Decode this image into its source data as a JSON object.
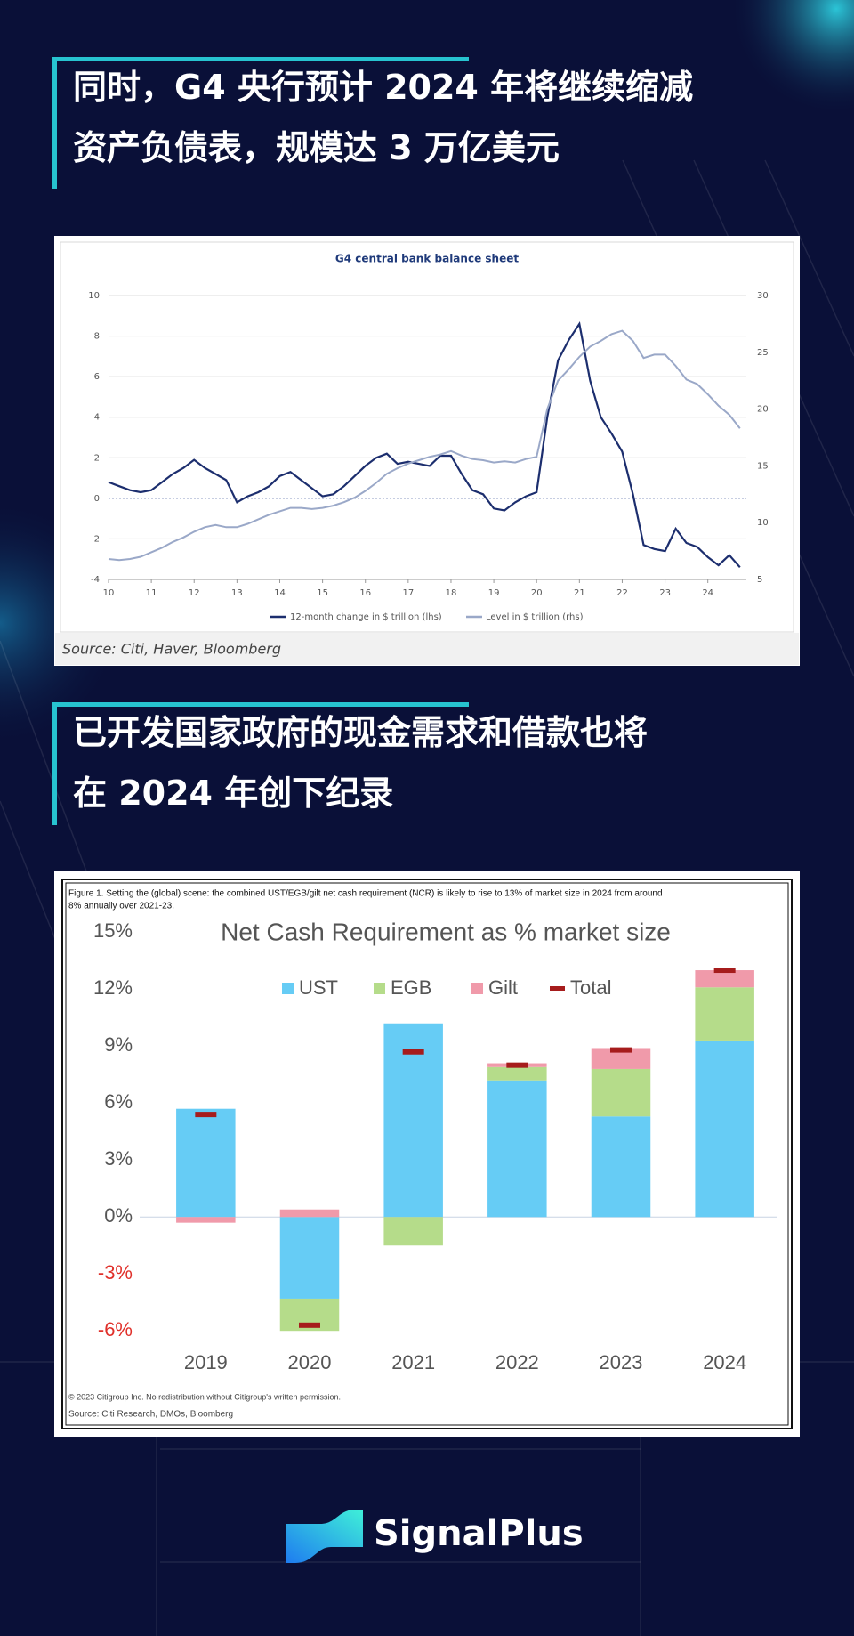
{
  "heading_1": [
    "同时，G4 央行预计 2024 年将继续缩减",
    "资产负债表，规模达 3 万亿美元"
  ],
  "heading_2": [
    "已开发国家政府的现金需求和借款也将",
    "在 2024 年创下纪录"
  ],
  "brand": "SignalPlus",
  "chart_data": [
    {
      "type": "line",
      "title": "G4 central bank balance sheet",
      "source": "Source: Citi, Haver, Bloomberg",
      "x": [
        10,
        10.25,
        10.5,
        10.75,
        11,
        11.25,
        11.5,
        11.75,
        12,
        12.25,
        12.5,
        12.75,
        13,
        13.25,
        13.5,
        13.75,
        14,
        14.25,
        14.5,
        14.75,
        15,
        15.25,
        15.5,
        15.75,
        16,
        16.25,
        16.5,
        16.75,
        17,
        17.25,
        17.5,
        17.75,
        18,
        18.25,
        18.5,
        18.75,
        19,
        19.25,
        19.5,
        19.75,
        20,
        20.25,
        20.5,
        20.75,
        21,
        21.25,
        21.5,
        21.75,
        22,
        22.25,
        22.5,
        22.75,
        23,
        23.25,
        23.5,
        23.75,
        24,
        24.25,
        24.5,
        24.75
      ],
      "series": [
        {
          "name": "12-month change in $ trillion (lhs)",
          "color": "#1c2e6e",
          "values": [
            0.8,
            0.6,
            0.4,
            0.3,
            0.4,
            0.8,
            1.2,
            1.5,
            1.9,
            1.5,
            1.2,
            0.9,
            -0.2,
            0.1,
            0.3,
            0.6,
            1.1,
            1.3,
            0.9,
            0.5,
            0.1,
            0.2,
            0.6,
            1.1,
            1.6,
            2.0,
            2.2,
            1.7,
            1.8,
            1.7,
            1.6,
            2.1,
            2.1,
            1.2,
            0.4,
            0.2,
            -0.5,
            -0.6,
            -0.2,
            0.1,
            0.3,
            4.0,
            6.8,
            7.8,
            8.6,
            5.8,
            4.0,
            3.2,
            2.3,
            0.2,
            -2.3,
            -2.5,
            -2.6,
            -1.5,
            -2.2,
            -2.4,
            -2.9,
            -3.3,
            -2.8,
            -3.4
          ]
        },
        {
          "name": "Level in $ trillion (rhs)",
          "color": "#9aa8c8",
          "axis": "y2",
          "values": [
            6.8,
            6.7,
            6.8,
            7.0,
            7.4,
            7.8,
            8.3,
            8.7,
            9.2,
            9.6,
            9.8,
            9.6,
            9.6,
            9.9,
            10.3,
            10.7,
            11.0,
            11.3,
            11.3,
            11.2,
            11.3,
            11.5,
            11.8,
            12.2,
            12.8,
            13.5,
            14.3,
            14.8,
            15.2,
            15.5,
            15.8,
            16.0,
            16.3,
            15.9,
            15.6,
            15.5,
            15.3,
            15.4,
            15.3,
            15.6,
            15.8,
            20.0,
            22.5,
            23.5,
            24.6,
            25.5,
            26.0,
            26.6,
            26.9,
            26.0,
            24.5,
            24.8,
            24.8,
            23.8,
            22.6,
            22.2,
            21.3,
            20.3,
            19.5,
            18.3
          ]
        }
      ],
      "xlim": [
        10,
        24.9
      ],
      "xticks": [
        10,
        11,
        12,
        13,
        14,
        15,
        16,
        17,
        18,
        19,
        20,
        21,
        22,
        23,
        24
      ],
      "ylim": [
        -4,
        10
      ],
      "yticks": [
        -4,
        -2,
        0,
        2,
        4,
        6,
        8,
        10
      ],
      "y2lim": [
        5,
        30
      ],
      "y2ticks": [
        5,
        10,
        15,
        20,
        25,
        30
      ],
      "grid": true
    },
    {
      "type": "stacked_bar",
      "caption": [
        "Figure 1. Setting the (global) scene: the combined UST/EGB/gilt net cash requirement (NCR) is likely to rise to 13% of market size in 2024 from around",
        "8% annually over 2021-23."
      ],
      "title": "Net Cash Requirement as % market size",
      "categories": [
        "2019",
        "2020",
        "2021",
        "2022",
        "2023",
        "2024"
      ],
      "series": [
        {
          "name": "UST",
          "color": "#66ccf5",
          "values": [
            5.7,
            -4.3,
            10.2,
            7.2,
            5.3,
            9.3
          ]
        },
        {
          "name": "EGB",
          "color": "#b5dc8a",
          "values": [
            0,
            -1.7,
            -1.5,
            0.7,
            2.5,
            2.8
          ]
        },
        {
          "name": "Gilt",
          "color": "#f09aaa",
          "values": [
            -0.3,
            0.4,
            0,
            0.2,
            1.1,
            0.9
          ]
        }
      ],
      "totals": {
        "name": "Total",
        "color": "#a61c1c",
        "values": [
          5.4,
          -5.7,
          8.7,
          8.0,
          8.8,
          13.0
        ]
      },
      "ylim": [
        -6.6,
        15.3
      ],
      "yticks": [
        {
          "value": -6,
          "label": "-6%"
        },
        {
          "value": -3,
          "label": "-3%"
        },
        {
          "value": 0,
          "label": "0%"
        },
        {
          "value": 3,
          "label": "3%"
        },
        {
          "value": 6,
          "label": "6%"
        },
        {
          "value": 9,
          "label": "9%"
        },
        {
          "value": 12,
          "label": "12%"
        },
        {
          "value": 15,
          "label": "15%"
        }
      ],
      "negative_tick_color": "#e0302a",
      "notes": [
        "© 2023 Citigroup Inc. No redistribution without Citigroup's written permission.",
        "Source: Citi Research, DMOs, Bloomberg"
      ]
    }
  ]
}
